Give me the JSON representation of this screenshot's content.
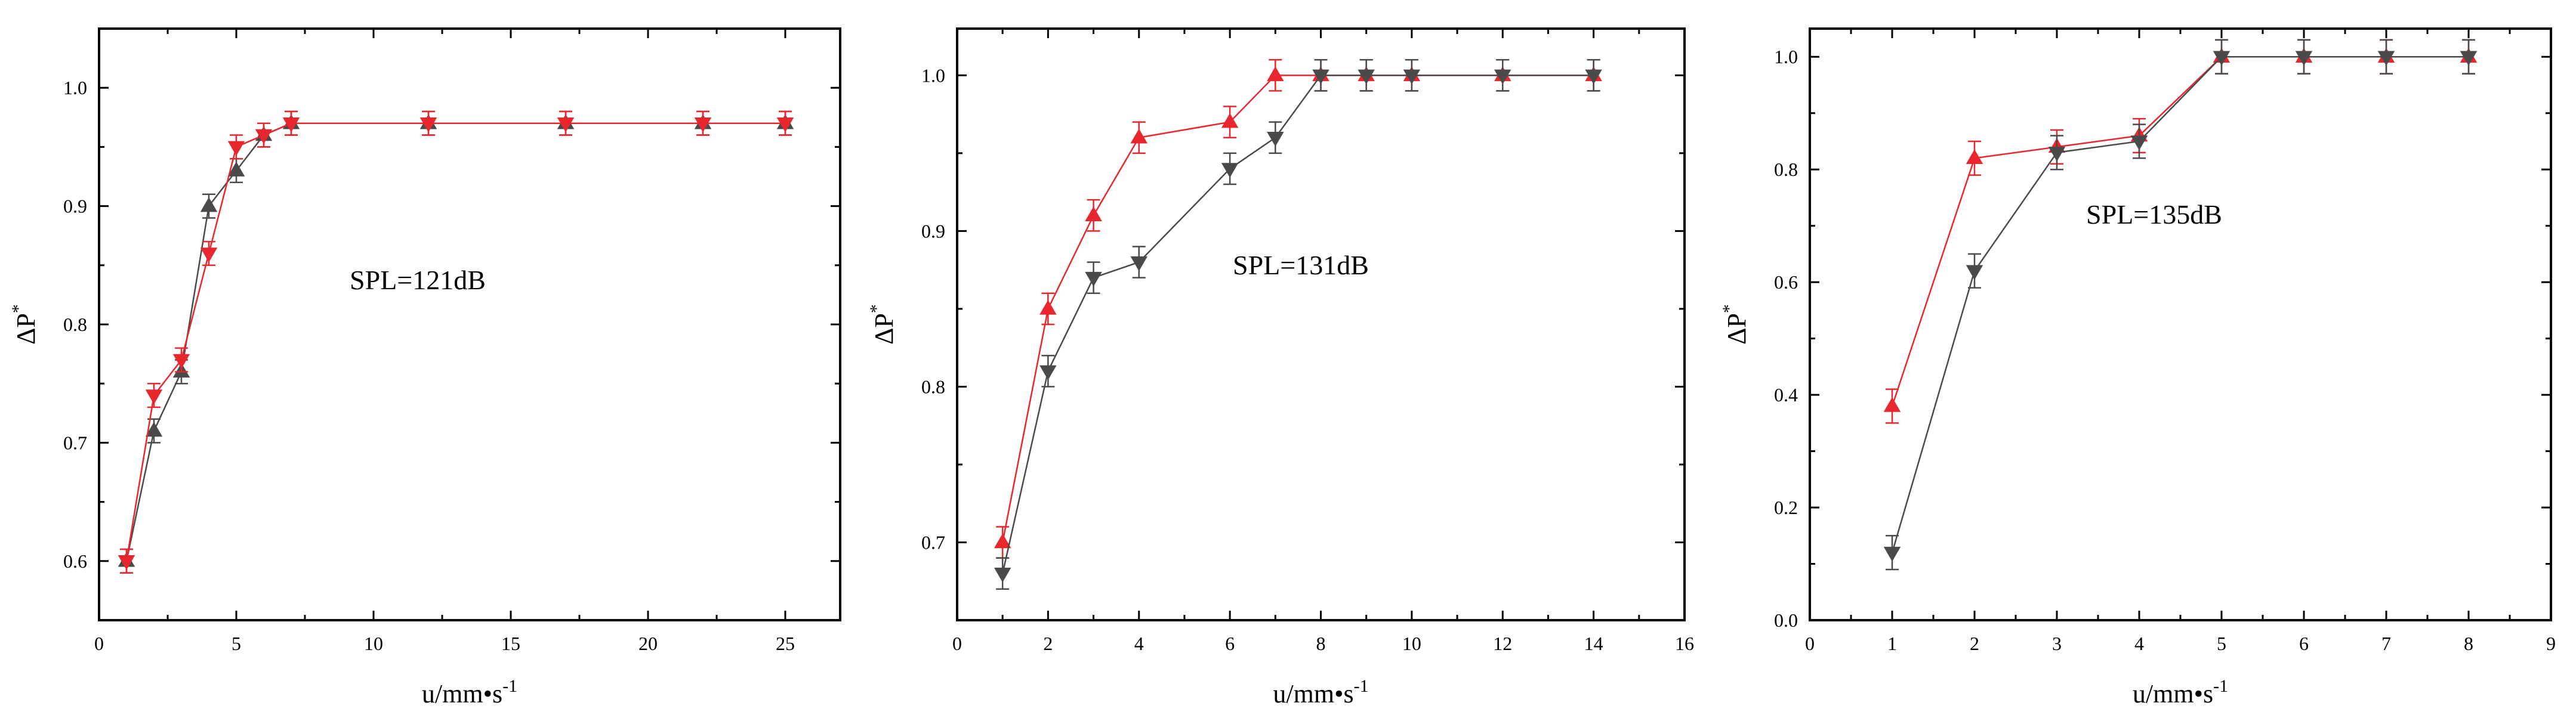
{
  "chart_data": [
    {
      "type": "line",
      "annotation": "SPL=121dB",
      "xlabel": "u/mm•s",
      "xlabel_sup": "-1",
      "ylabel": "ΔP",
      "ylabel_sup": "*",
      "xlim": [
        0,
        27
      ],
      "ylim": [
        0.55,
        1.05
      ],
      "xticks": [
        0,
        5,
        10,
        15,
        20,
        25
      ],
      "yticks": [
        0.6,
        0.7,
        0.8,
        0.9,
        1.0
      ],
      "xtick_labels": [
        "0",
        "5",
        "10",
        "15",
        "20",
        "25"
      ],
      "ytick_labels": [
        "0.6",
        "0.7",
        "0.8",
        "0.9",
        "1.0"
      ],
      "series": [
        {
          "color": "#4a4a4a",
          "marker": "triangle-up",
          "x": [
            1,
            2,
            3,
            4,
            5,
            6,
            7,
            12,
            17,
            22,
            25
          ],
          "y": [
            0.6,
            0.71,
            0.76,
            0.9,
            0.93,
            0.96,
            0.97,
            0.97,
            0.97,
            0.97,
            0.97
          ],
          "err": [
            0.01,
            0.01,
            0.01,
            0.01,
            0.01,
            0.01,
            0.01,
            0.01,
            0.01,
            0.01,
            0.01
          ]
        },
        {
          "color": "#e8262d",
          "marker": "triangle-down",
          "x": [
            1,
            2,
            3,
            4,
            5,
            6,
            7,
            12,
            17,
            22,
            25
          ],
          "y": [
            0.6,
            0.74,
            0.77,
            0.86,
            0.95,
            0.96,
            0.97,
            0.97,
            0.97,
            0.97,
            0.97
          ],
          "err": [
            0.01,
            0.01,
            0.01,
            0.01,
            0.01,
            0.01,
            0.01,
            0.01,
            0.01,
            0.01,
            0.01
          ]
        }
      ]
    },
    {
      "type": "line",
      "annotation": "SPL=131dB",
      "xlabel": "u/mm•s",
      "xlabel_sup": "-1",
      "ylabel": "ΔP",
      "ylabel_sup": "*",
      "xlim": [
        0,
        16
      ],
      "ylim": [
        0.65,
        1.03
      ],
      "xticks": [
        0,
        2,
        4,
        6,
        8,
        10,
        12,
        14,
        16
      ],
      "yticks": [
        0.7,
        0.8,
        0.9,
        1.0
      ],
      "xtick_labels": [
        "0",
        "2",
        "4",
        "6",
        "8",
        "10",
        "12",
        "14",
        "16"
      ],
      "ytick_labels": [
        "0.7",
        "0.8",
        "0.9",
        "1.0"
      ],
      "series": [
        {
          "color": "#e8262d",
          "marker": "triangle-up",
          "x": [
            1,
            2,
            3,
            4,
            6,
            7,
            8,
            9,
            10,
            12,
            14
          ],
          "y": [
            0.7,
            0.85,
            0.91,
            0.96,
            0.97,
            1.0,
            1.0,
            1.0,
            1.0,
            1.0,
            1.0
          ],
          "err": [
            0.01,
            0.01,
            0.01,
            0.01,
            0.01,
            0.01,
            0.01,
            0.01,
            0.01,
            0.01,
            0.01
          ]
        },
        {
          "color": "#4a4a4a",
          "marker": "triangle-down",
          "x": [
            1,
            2,
            3,
            4,
            6,
            7,
            8,
            9,
            10,
            12,
            14
          ],
          "y": [
            0.68,
            0.81,
            0.87,
            0.88,
            0.94,
            0.96,
            1.0,
            1.0,
            1.0,
            1.0,
            1.0
          ],
          "err": [
            0.01,
            0.01,
            0.01,
            0.01,
            0.01,
            0.01,
            0.01,
            0.01,
            0.01,
            0.01,
            0.01
          ]
        }
      ]
    },
    {
      "type": "line",
      "annotation": "SPL=135dB",
      "xlabel": "u/mm•s",
      "xlabel_sup": "-1",
      "ylabel": "ΔP",
      "ylabel_sup": "*",
      "xlim": [
        0,
        9
      ],
      "ylim": [
        0.0,
        1.05
      ],
      "xticks": [
        0,
        1,
        2,
        3,
        4,
        5,
        6,
        7,
        8,
        9
      ],
      "yticks": [
        0.0,
        0.2,
        0.4,
        0.6,
        0.8,
        1.0
      ],
      "xtick_labels": [
        "0",
        "1",
        "2",
        "3",
        "4",
        "5",
        "6",
        "7",
        "8",
        "9"
      ],
      "ytick_labels": [
        "0.0",
        "0.2",
        "0.4",
        "0.6",
        "0.8",
        "1.0"
      ],
      "series": [
        {
          "color": "#e8262d",
          "marker": "triangle-up",
          "x": [
            1,
            2,
            3,
            4,
            5,
            6,
            7,
            8
          ],
          "y": [
            0.38,
            0.82,
            0.84,
            0.86,
            1.0,
            1.0,
            1.0,
            1.0
          ],
          "err": [
            0.03,
            0.03,
            0.03,
            0.03,
            0.03,
            0.03,
            0.03,
            0.03
          ]
        },
        {
          "color": "#4a4a4a",
          "marker": "triangle-down",
          "x": [
            1,
            2,
            3,
            4,
            5,
            6,
            7,
            8
          ],
          "y": [
            0.12,
            0.62,
            0.83,
            0.85,
            1.0,
            1.0,
            1.0,
            1.0
          ],
          "err": [
            0.03,
            0.03,
            0.03,
            0.03,
            0.03,
            0.03,
            0.03,
            0.03
          ]
        }
      ]
    }
  ]
}
